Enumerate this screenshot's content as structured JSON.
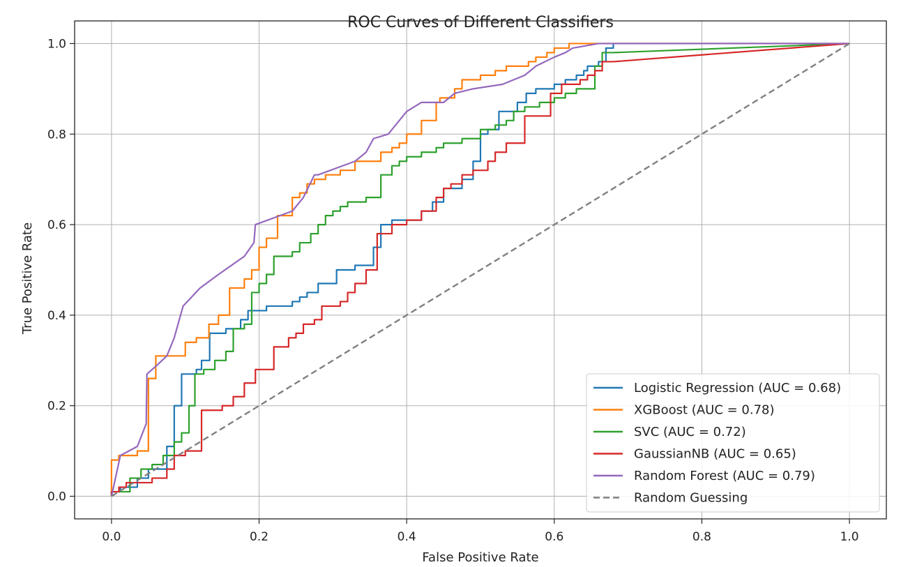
{
  "chart_data": {
    "type": "line",
    "title": "ROC Curves of Different Classifiers",
    "xlabel": "False Positive Rate",
    "ylabel": "True Positive Rate",
    "xlim": [
      -0.05,
      1.05
    ],
    "ylim": [
      -0.05,
      1.05
    ],
    "xticks": [
      "0.0",
      "0.2",
      "0.4",
      "0.6",
      "0.8",
      "1.0"
    ],
    "yticks": [
      "0.0",
      "0.2",
      "0.4",
      "0.6",
      "0.8",
      "1.0"
    ],
    "grid": true,
    "legend_position": "lower-right",
    "series": [
      {
        "name": "Logistic Regression (AUC = 0.68)",
        "color": "#1f77b4",
        "dash": false,
        "x": [
          0.0,
          0.0,
          0.012,
          0.012,
          0.035,
          0.035,
          0.05,
          0.05,
          0.075,
          0.075,
          0.085,
          0.085,
          0.095,
          0.095,
          0.115,
          0.115,
          0.122,
          0.122,
          0.133,
          0.133,
          0.155,
          0.155,
          0.175,
          0.175,
          0.185,
          0.185,
          0.21,
          0.21,
          0.245,
          0.245,
          0.255,
          0.255,
          0.265,
          0.265,
          0.28,
          0.28,
          0.305,
          0.305,
          0.33,
          0.33,
          0.355,
          0.355,
          0.365,
          0.365,
          0.38,
          0.38,
          0.42,
          0.42,
          0.435,
          0.435,
          0.45,
          0.45,
          0.475,
          0.475,
          0.49,
          0.49,
          0.5,
          0.5,
          0.51,
          0.51,
          0.525,
          0.525,
          0.55,
          0.55,
          0.562,
          0.562,
          0.575,
          0.575,
          0.6,
          0.6,
          0.615,
          0.615,
          0.63,
          0.63,
          0.64,
          0.64,
          0.645,
          0.645,
          0.66,
          0.66,
          0.67,
          0.67,
          0.68,
          0.68,
          1.0
        ],
        "y": [
          0.0,
          0.01,
          0.01,
          0.02,
          0.02,
          0.04,
          0.04,
          0.06,
          0.06,
          0.11,
          0.11,
          0.2,
          0.2,
          0.27,
          0.27,
          0.28,
          0.28,
          0.3,
          0.3,
          0.36,
          0.36,
          0.37,
          0.37,
          0.39,
          0.39,
          0.41,
          0.41,
          0.42,
          0.42,
          0.43,
          0.43,
          0.44,
          0.44,
          0.45,
          0.45,
          0.47,
          0.47,
          0.5,
          0.5,
          0.51,
          0.51,
          0.55,
          0.55,
          0.6,
          0.6,
          0.61,
          0.61,
          0.63,
          0.63,
          0.65,
          0.65,
          0.68,
          0.68,
          0.7,
          0.7,
          0.74,
          0.74,
          0.8,
          0.8,
          0.81,
          0.81,
          0.85,
          0.85,
          0.87,
          0.87,
          0.89,
          0.89,
          0.9,
          0.9,
          0.91,
          0.91,
          0.92,
          0.92,
          0.93,
          0.93,
          0.94,
          0.94,
          0.95,
          0.95,
          0.96,
          0.96,
          0.99,
          0.99,
          1.0,
          1.0
        ]
      },
      {
        "name": "XGBoost (AUC = 0.78)",
        "color": "#ff7f0e",
        "dash": false,
        "x": [
          0.0,
          0.0,
          0.01,
          0.01,
          0.035,
          0.035,
          0.05,
          0.05,
          0.06,
          0.06,
          0.075,
          0.075,
          0.1,
          0.1,
          0.115,
          0.115,
          0.125,
          0.125,
          0.132,
          0.132,
          0.145,
          0.145,
          0.16,
          0.16,
          0.18,
          0.18,
          0.19,
          0.19,
          0.2,
          0.2,
          0.21,
          0.21,
          0.225,
          0.225,
          0.245,
          0.245,
          0.255,
          0.255,
          0.265,
          0.265,
          0.275,
          0.275,
          0.29,
          0.29,
          0.31,
          0.31,
          0.33,
          0.33,
          0.365,
          0.365,
          0.38,
          0.38,
          0.39,
          0.39,
          0.4,
          0.4,
          0.42,
          0.42,
          0.44,
          0.44,
          0.445,
          0.445,
          0.465,
          0.465,
          0.475,
          0.475,
          0.5,
          0.5,
          0.52,
          0.52,
          0.535,
          0.535,
          0.565,
          0.565,
          0.575,
          0.575,
          0.59,
          0.59,
          0.6,
          0.6,
          0.62,
          0.62,
          0.64,
          1.0
        ],
        "y": [
          0.0,
          0.08,
          0.08,
          0.09,
          0.09,
          0.1,
          0.1,
          0.26,
          0.26,
          0.31,
          0.31,
          0.31,
          0.31,
          0.34,
          0.34,
          0.35,
          0.35,
          0.35,
          0.35,
          0.38,
          0.38,
          0.4,
          0.4,
          0.46,
          0.46,
          0.48,
          0.48,
          0.5,
          0.5,
          0.55,
          0.55,
          0.57,
          0.57,
          0.62,
          0.62,
          0.66,
          0.66,
          0.67,
          0.67,
          0.69,
          0.69,
          0.7,
          0.7,
          0.71,
          0.71,
          0.72,
          0.72,
          0.74,
          0.74,
          0.76,
          0.76,
          0.77,
          0.77,
          0.78,
          0.78,
          0.8,
          0.8,
          0.83,
          0.83,
          0.87,
          0.87,
          0.88,
          0.88,
          0.9,
          0.9,
          0.92,
          0.92,
          0.93,
          0.93,
          0.94,
          0.94,
          0.95,
          0.95,
          0.96,
          0.96,
          0.97,
          0.97,
          0.98,
          0.98,
          0.99,
          0.99,
          1.0,
          1.0,
          1.0
        ]
      },
      {
        "name": "SVC (AUC = 0.72)",
        "color": "#2ca02c",
        "dash": false,
        "x": [
          0.0,
          0.0,
          0.025,
          0.025,
          0.04,
          0.04,
          0.055,
          0.055,
          0.07,
          0.07,
          0.085,
          0.085,
          0.095,
          0.095,
          0.105,
          0.105,
          0.113,
          0.113,
          0.125,
          0.125,
          0.14,
          0.14,
          0.155,
          0.155,
          0.165,
          0.165,
          0.18,
          0.18,
          0.19,
          0.19,
          0.2,
          0.2,
          0.21,
          0.21,
          0.22,
          0.22,
          0.245,
          0.245,
          0.255,
          0.255,
          0.27,
          0.27,
          0.28,
          0.28,
          0.29,
          0.29,
          0.3,
          0.3,
          0.31,
          0.31,
          0.32,
          0.32,
          0.33,
          0.33,
          0.345,
          0.345,
          0.365,
          0.365,
          0.38,
          0.38,
          0.39,
          0.39,
          0.4,
          0.4,
          0.42,
          0.42,
          0.44,
          0.44,
          0.45,
          0.45,
          0.475,
          0.475,
          0.5,
          0.5,
          0.52,
          0.52,
          0.535,
          0.535,
          0.545,
          0.545,
          0.56,
          0.56,
          0.58,
          0.58,
          0.6,
          0.6,
          0.615,
          0.615,
          0.63,
          0.63,
          0.655,
          0.655,
          0.665,
          0.665,
          0.68,
          1.0
        ],
        "y": [
          0.0,
          0.01,
          0.01,
          0.04,
          0.04,
          0.06,
          0.06,
          0.07,
          0.07,
          0.09,
          0.09,
          0.12,
          0.12,
          0.14,
          0.14,
          0.2,
          0.2,
          0.27,
          0.27,
          0.28,
          0.28,
          0.3,
          0.3,
          0.32,
          0.32,
          0.37,
          0.37,
          0.38,
          0.38,
          0.45,
          0.45,
          0.47,
          0.47,
          0.49,
          0.49,
          0.53,
          0.53,
          0.54,
          0.54,
          0.56,
          0.56,
          0.58,
          0.58,
          0.6,
          0.6,
          0.62,
          0.62,
          0.63,
          0.63,
          0.64,
          0.64,
          0.65,
          0.65,
          0.65,
          0.65,
          0.66,
          0.66,
          0.71,
          0.71,
          0.73,
          0.73,
          0.74,
          0.74,
          0.75,
          0.75,
          0.76,
          0.76,
          0.77,
          0.77,
          0.78,
          0.78,
          0.79,
          0.79,
          0.81,
          0.81,
          0.82,
          0.82,
          0.83,
          0.83,
          0.85,
          0.85,
          0.86,
          0.86,
          0.87,
          0.87,
          0.88,
          0.88,
          0.89,
          0.89,
          0.9,
          0.9,
          0.95,
          0.95,
          0.98,
          0.98,
          1.0
        ]
      },
      {
        "name": "GaussianNB (AUC = 0.65)",
        "color": "#d62728",
        "dash": false,
        "x": [
          0.0,
          0.0,
          0.01,
          0.01,
          0.02,
          0.02,
          0.035,
          0.035,
          0.055,
          0.055,
          0.075,
          0.075,
          0.085,
          0.085,
          0.1,
          0.1,
          0.122,
          0.122,
          0.15,
          0.15,
          0.165,
          0.165,
          0.18,
          0.18,
          0.195,
          0.195,
          0.22,
          0.22,
          0.24,
          0.24,
          0.25,
          0.25,
          0.26,
          0.26,
          0.275,
          0.275,
          0.285,
          0.285,
          0.31,
          0.31,
          0.32,
          0.32,
          0.33,
          0.33,
          0.345,
          0.345,
          0.36,
          0.36,
          0.38,
          0.38,
          0.4,
          0.4,
          0.42,
          0.42,
          0.44,
          0.44,
          0.45,
          0.45,
          0.46,
          0.46,
          0.475,
          0.475,
          0.49,
          0.49,
          0.51,
          0.51,
          0.52,
          0.52,
          0.535,
          0.535,
          0.56,
          0.56,
          0.595,
          0.595,
          0.61,
          0.61,
          0.635,
          0.635,
          0.645,
          0.645,
          0.655,
          0.655,
          0.665,
          0.665,
          0.68,
          1.0
        ],
        "y": [
          0.0,
          0.01,
          0.01,
          0.02,
          0.02,
          0.03,
          0.03,
          0.03,
          0.03,
          0.04,
          0.04,
          0.06,
          0.06,
          0.09,
          0.09,
          0.1,
          0.1,
          0.19,
          0.19,
          0.2,
          0.2,
          0.22,
          0.22,
          0.25,
          0.25,
          0.28,
          0.28,
          0.33,
          0.33,
          0.35,
          0.35,
          0.36,
          0.36,
          0.38,
          0.38,
          0.39,
          0.39,
          0.42,
          0.42,
          0.43,
          0.43,
          0.45,
          0.45,
          0.47,
          0.47,
          0.5,
          0.5,
          0.58,
          0.58,
          0.6,
          0.6,
          0.61,
          0.61,
          0.63,
          0.63,
          0.66,
          0.66,
          0.68,
          0.68,
          0.69,
          0.69,
          0.71,
          0.71,
          0.72,
          0.72,
          0.74,
          0.74,
          0.76,
          0.76,
          0.78,
          0.78,
          0.84,
          0.84,
          0.89,
          0.89,
          0.91,
          0.91,
          0.92,
          0.92,
          0.93,
          0.93,
          0.94,
          0.94,
          0.96,
          0.96,
          1.0
        ]
      },
      {
        "name": "Random Forest (AUC = 0.79)",
        "color": "#9467bd",
        "dash": false,
        "x": [
          0.0,
          0.012,
          0.035,
          0.047,
          0.048,
          0.062,
          0.075,
          0.085,
          0.097,
          0.12,
          0.145,
          0.18,
          0.193,
          0.195,
          0.245,
          0.26,
          0.275,
          0.28,
          0.33,
          0.345,
          0.355,
          0.375,
          0.39,
          0.4,
          0.42,
          0.45,
          0.465,
          0.49,
          0.53,
          0.545,
          0.56,
          0.575,
          0.6,
          0.615,
          0.625,
          0.66,
          1.0
        ],
        "y": [
          0.0,
          0.09,
          0.11,
          0.16,
          0.27,
          0.29,
          0.31,
          0.35,
          0.42,
          0.46,
          0.49,
          0.53,
          0.56,
          0.6,
          0.63,
          0.66,
          0.71,
          0.71,
          0.74,
          0.76,
          0.79,
          0.8,
          0.83,
          0.85,
          0.87,
          0.87,
          0.89,
          0.9,
          0.91,
          0.92,
          0.93,
          0.95,
          0.97,
          0.98,
          0.99,
          1.0,
          1.0
        ]
      },
      {
        "name": "Random Guessing",
        "color": "#808080",
        "dash": true,
        "x": [
          0.0,
          1.0
        ],
        "y": [
          0.0,
          1.0
        ]
      }
    ]
  }
}
